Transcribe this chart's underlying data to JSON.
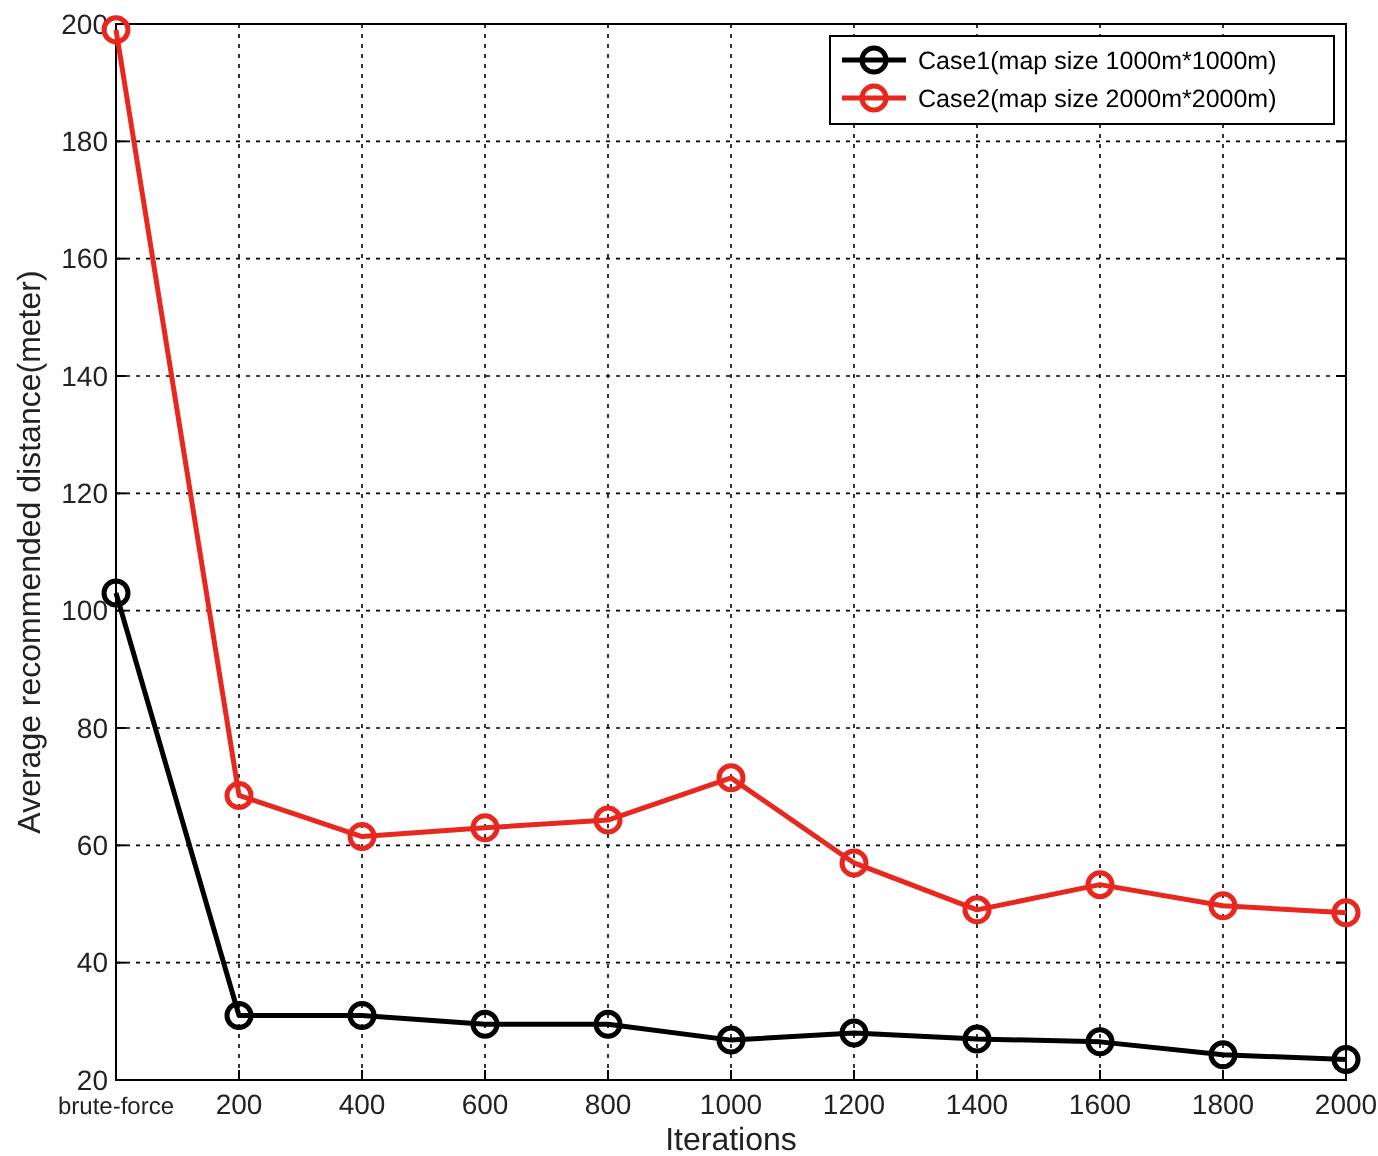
{
  "chart_data": {
    "type": "line",
    "xlabel": "Iterations",
    "ylabel": "Average recommended distance(meter)",
    "categories": [
      "brute-force",
      "200",
      "400",
      "600",
      "800",
      "1000",
      "1200",
      "1400",
      "1600",
      "1800",
      "2000"
    ],
    "series": [
      {
        "name": "Case1(map size 1000m*1000m)",
        "color": "#000000",
        "values": [
          103,
          31,
          31,
          29.5,
          29.5,
          26.8,
          28,
          27,
          26.5,
          24.3,
          23.5
        ]
      },
      {
        "name": "Case2(map size 2000m*2000m)",
        "color": "#e8281e",
        "values": [
          199,
          68.5,
          61.5,
          63,
          64.3,
          71.5,
          57,
          49,
          53.3,
          49.7,
          48.5
        ]
      }
    ],
    "ylim": [
      20,
      200
    ],
    "yticks": [
      20,
      40,
      60,
      80,
      100,
      120,
      140,
      160,
      180,
      200
    ],
    "grid": true,
    "legend": "top right",
    "marker": "circle",
    "line_style": "solid"
  }
}
